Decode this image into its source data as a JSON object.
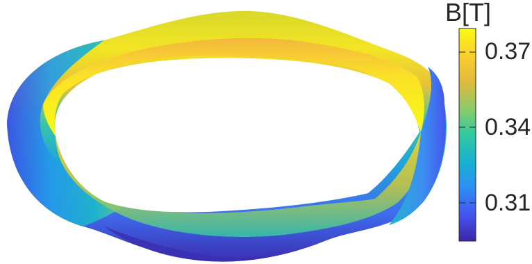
{
  "colorbar": {
    "title": "B[T]",
    "ticks": [
      "0.37",
      "0.34",
      "0.31"
    ],
    "tick_values": [
      0.37,
      0.34,
      0.31
    ],
    "range": [
      0.295,
      0.381
    ],
    "colormap": "parula",
    "colors": [
      "#3e26a8",
      "#4454f0",
      "#2d8ef5",
      "#17b2cf",
      "#31c99e",
      "#8dcc67",
      "#e1b93b",
      "#fbd02d",
      "#f9fb15"
    ]
  }
}
